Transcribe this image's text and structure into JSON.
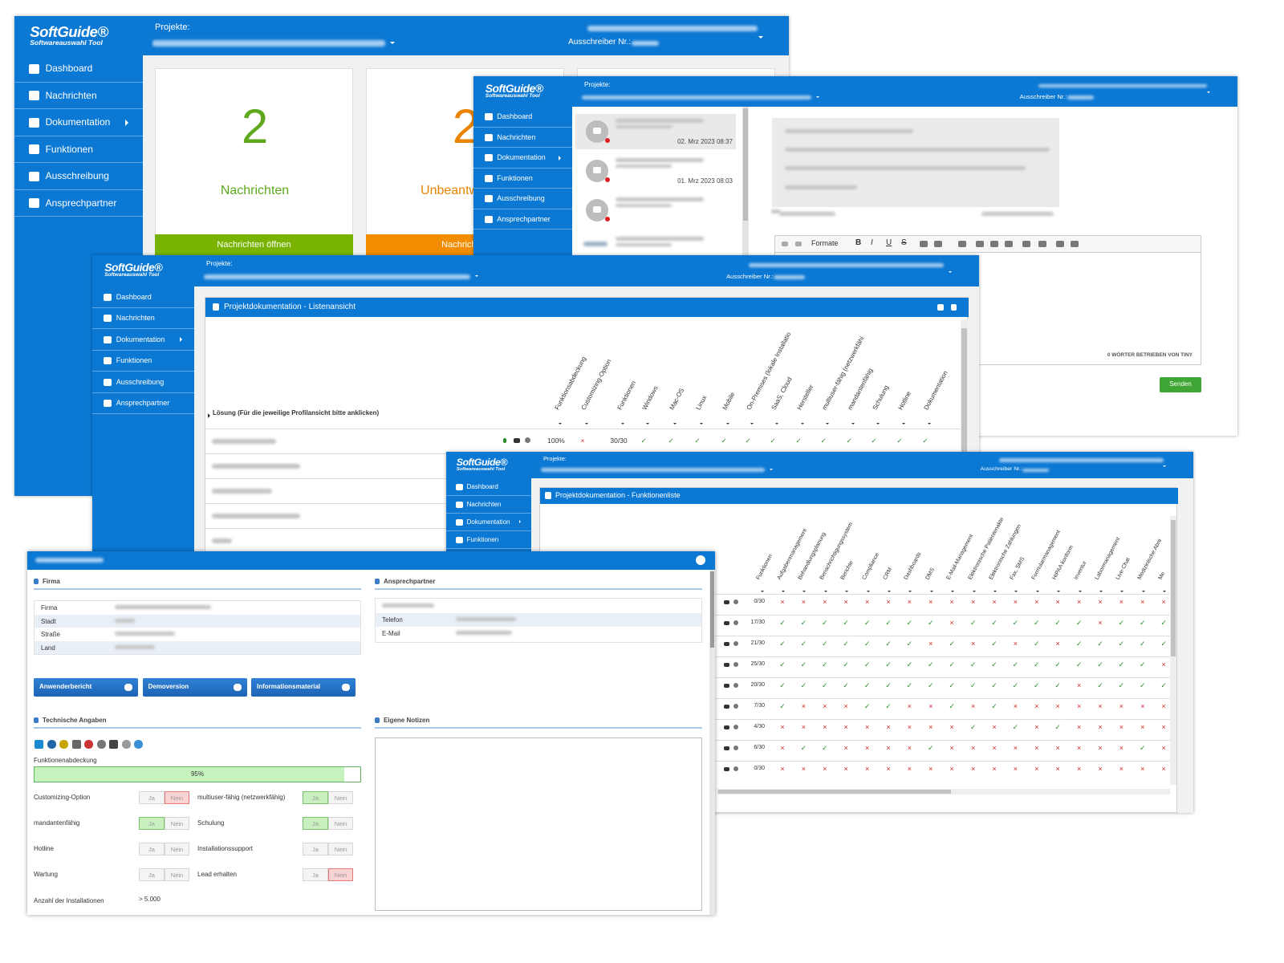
{
  "dashboard": {
    "logo": "SoftGuide®",
    "logo_sub": "Softwareauswahl Tool",
    "projects_label": "Projekte:",
    "bidder_label": "Ausschreiber Nr.:",
    "nav": [
      "Dashboard",
      "Nachrichten",
      "Dokumentation",
      "Funktionen",
      "Ausschreibung",
      "Ansprechpartner"
    ],
    "cards": [
      {
        "count": 2,
        "label": "Nachrichten",
        "button": "Nachrichten öffnen"
      },
      {
        "count": 2,
        "label": "Unbeantwortete",
        "button": "Nachrichten"
      }
    ]
  },
  "messages": {
    "logo": "SoftGuide®",
    "logo_sub": "Softwareauswahl Tool",
    "projects_label": "Projekte:",
    "bidder_label": "Ausschreiber Nr.:",
    "nav": [
      "Dashboard",
      "Nachrichten",
      "Dokumentation",
      "Funktionen",
      "Ausschreibung",
      "Ansprechpartner"
    ],
    "items": [
      {
        "date": "02. Mrz 2023 08:37"
      },
      {
        "date": "01. Mrz 2023 08:03"
      }
    ],
    "editor": {
      "format": "Formate",
      "tools": [
        "B",
        "I",
        "U",
        "S"
      ],
      "footer": "0 WÖRTER BETRIEBEN VON TINY",
      "send": "Senden"
    }
  },
  "list_view": {
    "logo": "SoftGuide®",
    "logo_sub": "Softwareauswahl Tool",
    "projects_label": "Projekte:",
    "bidder_label": "Ausschreiber Nr.:",
    "nav": [
      "Dashboard",
      "Nachrichten",
      "Dokumentation",
      "Funktionen",
      "Ausschreibung",
      "Ansprechpartner"
    ],
    "panel_title": "Projektdokumentation - Listenansicht",
    "solution_header": "Lösung (Für die jeweilige Profilansicht bitte anklicken)",
    "columns": [
      "Funktionsabdeckung",
      "Customizing-Option",
      "Funktionen",
      "Windows",
      "Mac-OS",
      "Linux",
      "Mobile",
      "On-Premises (lokale Installatio",
      "SaaS, Cloud",
      "Hersteller",
      "multiuser-fähig (netzwerkfähi",
      "mandantenfähig",
      "Schulung",
      "Hotline",
      "Dokumentation"
    ],
    "row": [
      "100%",
      "×",
      "30/30",
      "✓",
      "✓",
      "✓",
      "✓",
      "✓",
      "✓",
      "✓",
      "✓",
      "✓",
      "✓",
      "✓",
      "✓"
    ]
  },
  "function_list": {
    "logo": "SoftGuide®",
    "logo_sub": "Softwareauswahl Tool",
    "projects_label": "Projekte:",
    "bidder_label": "Ausschreiber Nr.:",
    "nav": [
      "Dashboard",
      "Nachrichten",
      "Dokumentation",
      "Funktionen"
    ],
    "panel_title": "Projektdokumentation - Funktionenliste",
    "columns": [
      "Funktionen",
      "Aufgabenmanagement",
      "Behandlungsplanung",
      "Benachrichtigungssystem",
      "Berichte",
      "Compliance",
      "CRM",
      "Dashboards",
      "DMS",
      "E-Mail-Management",
      "Elektronische Patientenakte",
      "Elektronische Zahlungen",
      "Fax, SMS",
      "Formularmanagement",
      "HIPAA konform",
      "Inventur",
      "Labormanagement",
      "Live-Chat",
      "Medizinische Abre",
      "Me"
    ],
    "rows": [
      [
        "0/30",
        "×",
        "×",
        "×",
        "×",
        "×",
        "×",
        "×",
        "×",
        "×",
        "×",
        "×",
        "×",
        "×",
        "×",
        "×",
        "×",
        "×",
        "×",
        "×"
      ],
      [
        "17/30",
        "✓",
        "✓",
        "✓",
        "✓",
        "✓",
        "✓",
        "✓",
        "✓",
        "×",
        "✓",
        "✓",
        "✓",
        "✓",
        "✓",
        "✓",
        "×",
        "✓",
        "✓",
        "✓"
      ],
      [
        "21/30",
        "✓",
        "✓",
        "✓",
        "✓",
        "✓",
        "✓",
        "✓",
        "×",
        "✓",
        "×",
        "✓",
        "×",
        "✓",
        "×",
        "✓",
        "✓",
        "✓",
        "✓",
        "✓"
      ],
      [
        "25/30",
        "✓",
        "✓",
        "✓",
        "✓",
        "✓",
        "✓",
        "✓",
        "✓",
        "✓",
        "✓",
        "✓",
        "✓",
        "✓",
        "✓",
        "✓",
        "✓",
        "✓",
        "✓",
        "×"
      ],
      [
        "20/30",
        "✓",
        "✓",
        "✓",
        "✓",
        "✓",
        "✓",
        "✓",
        "✓",
        "✓",
        "✓",
        "✓",
        "✓",
        "✓",
        "✓",
        "×",
        "✓",
        "✓",
        "✓",
        "✓"
      ],
      [
        "7/30",
        "✓",
        "×",
        "×",
        "×",
        "✓",
        "✓",
        "×",
        "×",
        "✓",
        "×",
        "✓",
        "×",
        "×",
        "×",
        "×",
        "×",
        "×",
        "×",
        "×"
      ],
      [
        "4/30",
        "×",
        "×",
        "×",
        "×",
        "×",
        "×",
        "×",
        "×",
        "×",
        "✓",
        "×",
        "✓",
        "×",
        "✓",
        "×",
        "×",
        "×",
        "×",
        "×"
      ],
      [
        "6/30",
        "×",
        "✓",
        "✓",
        "×",
        "×",
        "×",
        "×",
        "✓",
        "×",
        "×",
        "×",
        "×",
        "×",
        "×",
        "×",
        "×",
        "×",
        "✓",
        "×"
      ],
      [
        "0/30",
        "×",
        "×",
        "×",
        "×",
        "×",
        "×",
        "×",
        "×",
        "×",
        "×",
        "×",
        "×",
        "×",
        "×",
        "×",
        "×",
        "×",
        "×",
        "×"
      ]
    ]
  },
  "profile": {
    "sections": {
      "company": "Firma",
      "contact": "Ansprechpartner",
      "technical": "Technische Angaben",
      "notes": "Eigene Notizen"
    },
    "company_fields": [
      "Firma",
      "Stadt",
      "Straße",
      "Land"
    ],
    "contact_fields": [
      "Telefon",
      "E-Mail"
    ],
    "buttons": [
      "Anwenderbericht",
      "Demoversion",
      "Informationsmaterial"
    ],
    "coverage": {
      "label": "Funktionenabdeckung",
      "value": 95,
      "value_label": "95%"
    },
    "toggles": [
      {
        "label": "Customizing-Option",
        "options": [
          "Ja",
          "Nein"
        ],
        "selected": 1
      },
      {
        "label": "multiuser-fähig (netzwerkfähig)",
        "options": [
          "Ja",
          "Nein"
        ],
        "selected": 0
      },
      {
        "label": "mandantenfähig",
        "options": [
          "Ja",
          "Nein"
        ],
        "selected": 0
      },
      {
        "label": "Schulung",
        "options": [
          "Ja",
          "Nein"
        ],
        "selected": 0
      },
      {
        "label": "Hotline",
        "options": [
          "Ja",
          "Nein"
        ]
      },
      {
        "label": "Installationssupport",
        "options": [
          "Ja",
          "Nein"
        ]
      },
      {
        "label": "Wartung",
        "options": [
          "Ja",
          "Nein"
        ]
      },
      {
        "label": "Lead erhalten",
        "options": [
          "Ja",
          "Nein"
        ],
        "selected": 1
      }
    ],
    "installations": {
      "label": "Anzahl der Installationen",
      "value": "> 5.000"
    }
  }
}
